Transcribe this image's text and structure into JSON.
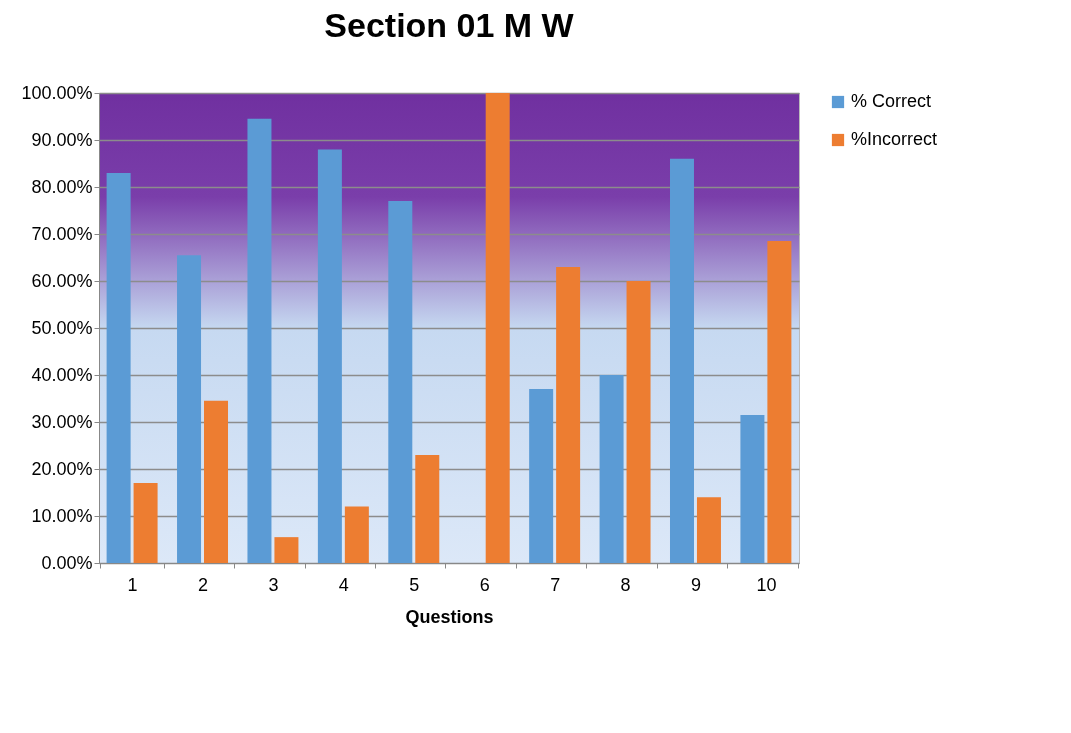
{
  "chart_data": {
    "type": "bar",
    "title": "Section 01 M W",
    "xlabel": "Questions",
    "categories": [
      "1",
      "2",
      "3",
      "4",
      "5",
      "6",
      "7",
      "8",
      "9",
      "10"
    ],
    "series": [
      {
        "name": "% Correct",
        "color": "#5b9bd5",
        "values": [
          83,
          65.5,
          94.5,
          88,
          77,
          0,
          37,
          40,
          86,
          31.5
        ]
      },
      {
        "name": "%Incorrect",
        "color": "#ed7d31",
        "values": [
          17,
          34.5,
          5.5,
          12,
          23,
          100,
          63,
          60,
          14,
          68.5
        ]
      }
    ],
    "ylim": [
      0,
      100
    ],
    "yticks": [
      {
        "value": 0,
        "label": "0.00%"
      },
      {
        "value": 10,
        "label": "10.00%"
      },
      {
        "value": 20,
        "label": "20.00%"
      },
      {
        "value": 30,
        "label": "30.00%"
      },
      {
        "value": 40,
        "label": "40.00%"
      },
      {
        "value": 50,
        "label": "50.00%"
      },
      {
        "value": 60,
        "label": "60.00%"
      },
      {
        "value": 70,
        "label": "70.00%"
      },
      {
        "value": 80,
        "label": "80.00%"
      },
      {
        "value": 90,
        "label": "90.00%"
      },
      {
        "value": 100,
        "label": "100.00%"
      }
    ],
    "grid": "y",
    "legend": "right"
  }
}
